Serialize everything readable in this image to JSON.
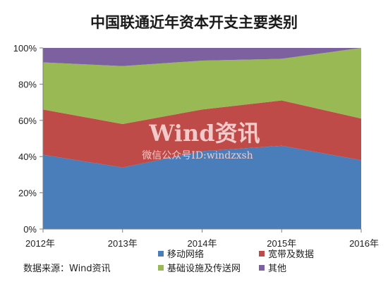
{
  "chart_data": {
    "type": "area",
    "stacked": true,
    "normalized": true,
    "title": "中国联通近年资本开支主要类别",
    "categories": [
      "2012年",
      "2013年",
      "2014年",
      "2015年",
      "2016年"
    ],
    "ylim": [
      0,
      100
    ],
    "yticks": [
      "0%",
      "20%",
      "40%",
      "60%",
      "80%",
      "100%"
    ],
    "grid": false,
    "legend_position": "bottom",
    "series": [
      {
        "name": "移动网络",
        "values": [
          41,
          34,
          43,
          46,
          38
        ],
        "color": "#4a7ebb"
      },
      {
        "name": "宽带及数据",
        "values": [
          25,
          24,
          23,
          25,
          23
        ],
        "color": "#be4b48"
      },
      {
        "name": "基础设施及传送网",
        "values": [
          26,
          32,
          27,
          23,
          39
        ],
        "color": "#98b954"
      },
      {
        "name": "其他",
        "values": [
          8,
          10,
          7,
          6,
          0
        ],
        "color": "#7d60a0"
      }
    ],
    "watermark": {
      "line1": "Wind资讯",
      "line2": "微信公众号ID:windzxsh"
    },
    "source": "数据来源：Wind资讯"
  }
}
